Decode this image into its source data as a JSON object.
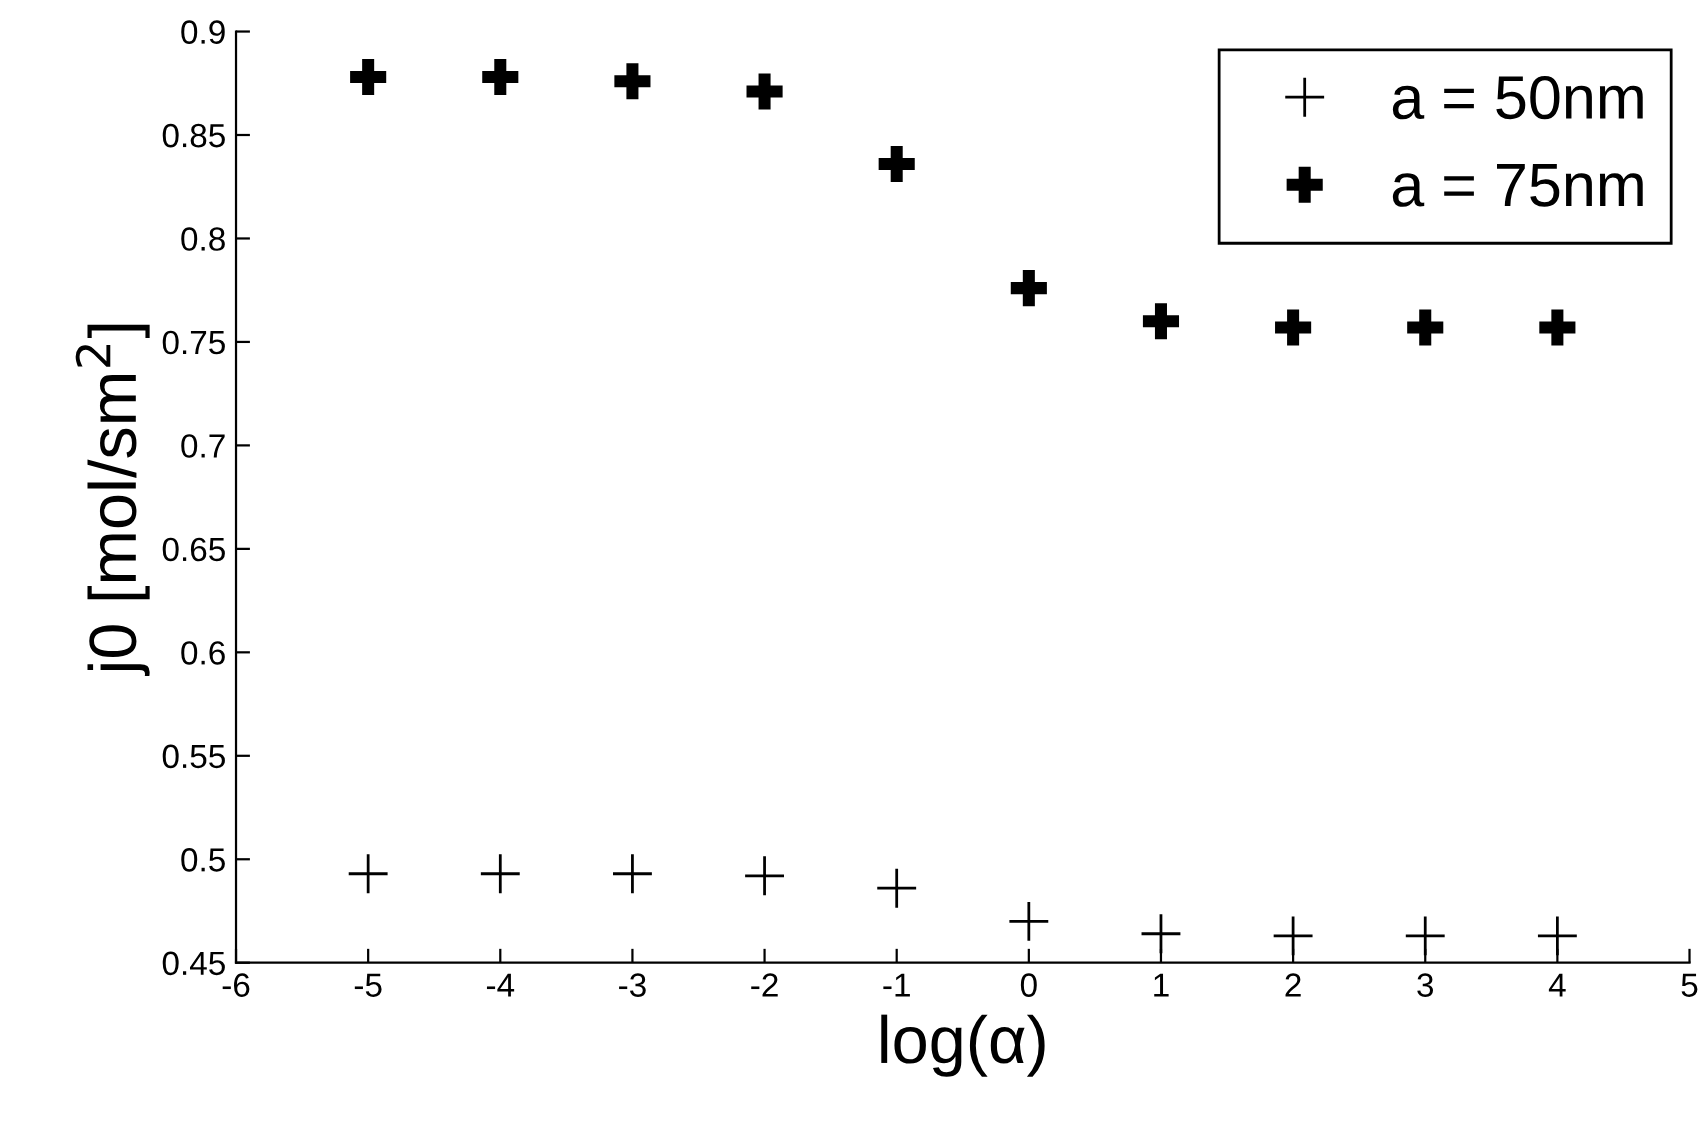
{
  "chart_data": {
    "type": "scatter",
    "xlabel": "log(α)",
    "ylabel": "j0 [mol/sm$^{2}$]",
    "x": [
      -5,
      -4,
      -3,
      -2,
      -1,
      0,
      1,
      2,
      3,
      4
    ],
    "series": [
      {
        "name": "a = 50nm",
        "color": "#000000",
        "marker": "cross",
        "values": [
          0.493,
          0.493,
          0.493,
          0.492,
          0.486,
          0.47,
          0.464,
          0.463,
          0.463,
          0.463
        ]
      },
      {
        "name": "a = 75nm",
        "color": "#000000",
        "marker": "plus",
        "values": [
          0.878,
          0.878,
          0.876,
          0.871,
          0.836,
          0.776,
          0.76,
          0.757,
          0.757,
          0.757
        ]
      }
    ],
    "xlim": [
      -6,
      5
    ],
    "xticks": [
      -6,
      -5,
      -4,
      -3,
      -2,
      -1,
      0,
      1,
      2,
      3,
      4,
      5
    ],
    "ylim": [
      0.45,
      0.9
    ],
    "yticks": [
      0.45,
      0.5,
      0.55,
      0.6,
      0.65,
      0.7,
      0.75,
      0.8,
      0.85,
      0.9
    ],
    "grid": false,
    "legend": "top right"
  }
}
